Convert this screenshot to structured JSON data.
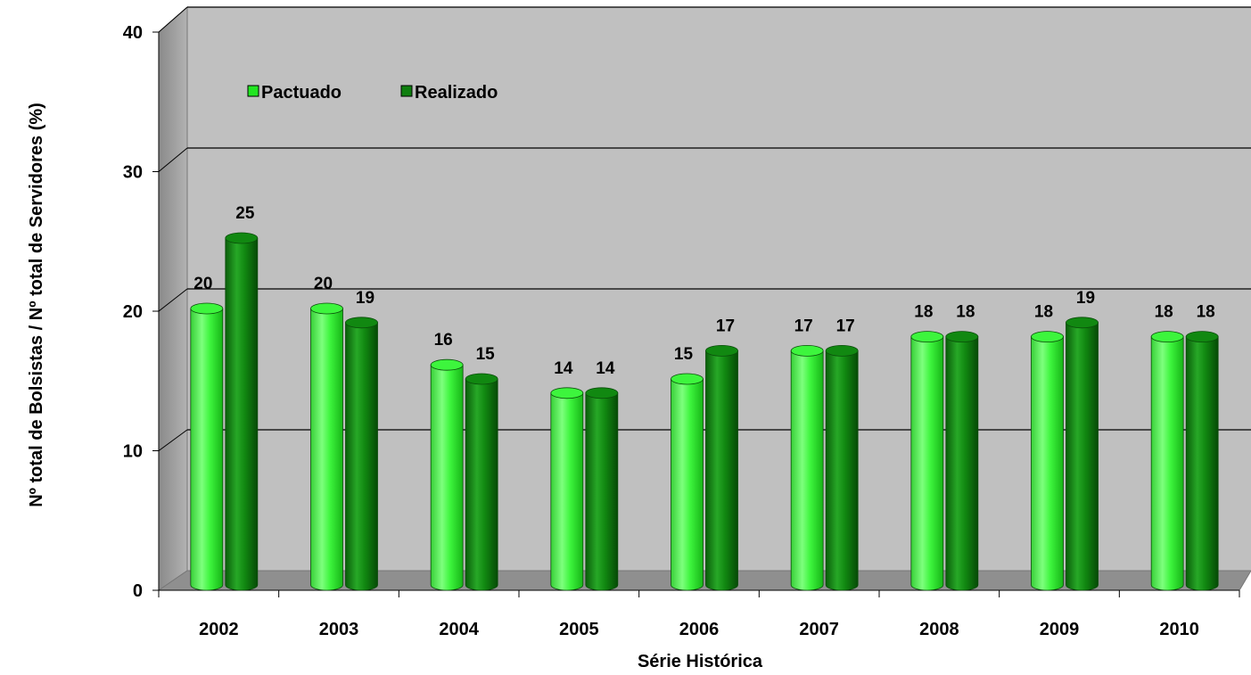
{
  "chart_data": {
    "type": "bar",
    "title": "",
    "xlabel": "Série Histórica",
    "ylabel": "Nº total  de Bolsistas / Nº total de Servidores (%)",
    "ylim": [
      0,
      40
    ],
    "yticks": [
      "0",
      "10",
      "20",
      "30",
      "40"
    ],
    "categories": [
      "2002",
      "2003",
      "2004",
      "2005",
      "2006",
      "2007",
      "2008",
      "2009",
      "2010"
    ],
    "series": [
      {
        "name": "Pactuado",
        "values": [
          20,
          20,
          16,
          14,
          15,
          17,
          18,
          18,
          18
        ],
        "color": "#22e622"
      },
      {
        "name": "Realizado",
        "values": [
          25,
          19,
          15,
          14,
          17,
          17,
          18,
          19,
          18
        ],
        "color": "#0f7f0f"
      }
    ],
    "legend": "top-left",
    "grid": true,
    "style": "3d-cylinder"
  }
}
